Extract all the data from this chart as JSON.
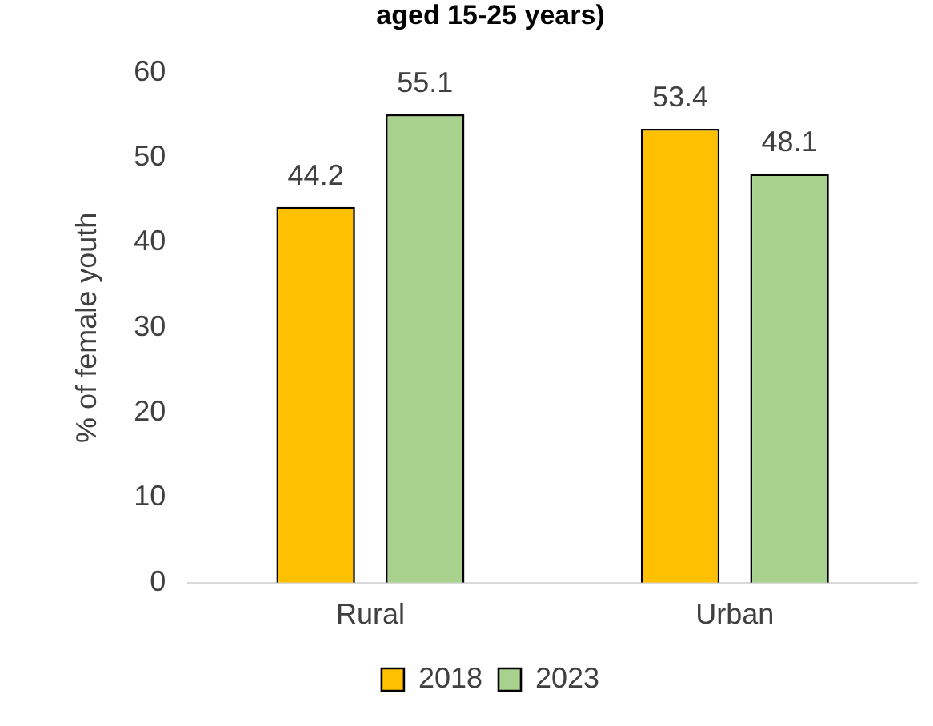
{
  "chart_data": {
    "type": "bar",
    "title": "aged 15-25 years)",
    "ylabel": "% of female youth",
    "categories": [
      "Rural",
      "Urban"
    ],
    "series": [
      {
        "name": "2018",
        "color": "#ffc000",
        "values": [
          44.2,
          53.4
        ]
      },
      {
        "name": "2023",
        "color": "#a9d18e",
        "values": [
          55.1,
          48.1
        ]
      }
    ],
    "ylim": [
      0,
      60
    ],
    "yticks": [
      0,
      10,
      20,
      30,
      40,
      50,
      60
    ],
    "grid": false,
    "legend": "bottom",
    "data_labels": true
  }
}
